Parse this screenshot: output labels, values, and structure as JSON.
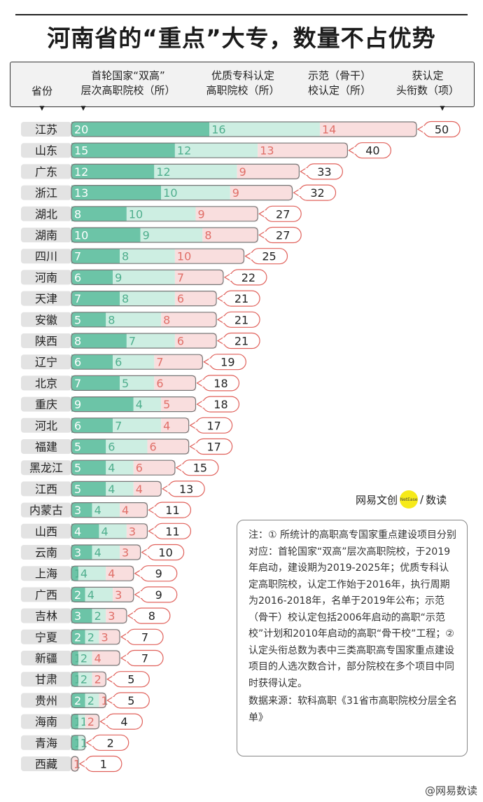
{
  "title": "河南省的“重点”大专，数量不占优势",
  "headers": {
    "province": "省份",
    "col1": "首轮国家“双高”\n层次高职院校（所）",
    "col2": "优质专科认定\n高职院校（所）",
    "col3": "示范（骨干）\n校认定（所）",
    "col4": "获认定\n头衔数（项）"
  },
  "colors": {
    "double_high": "#6cc4a7",
    "quality": "#cdeee2",
    "demo": "#f9dede",
    "bubble_border": "#e0605a",
    "demo_text": "#e06f68",
    "quality_text": "#4fae8d",
    "double_high_text": "#ffffff",
    "dark_text": "#222222"
  },
  "chart_data": {
    "type": "bar",
    "stacked": true,
    "categories": [
      "江苏",
      "山东",
      "广东",
      "浙江",
      "湖北",
      "湖南",
      "四川",
      "河南",
      "天津",
      "安徽",
      "陕西",
      "辽宁",
      "北京",
      "重庆",
      "河北",
      "福建",
      "黑龙江",
      "江西",
      "内蒙古",
      "山西",
      "云南",
      "上海",
      "广西",
      "吉林",
      "宁夏",
      "新疆",
      "甘肃",
      "贵州",
      "海南",
      "青海",
      "西藏"
    ],
    "series": [
      {
        "name": "首轮国家“双高”层次高职院校（所）",
        "values": [
          20,
          15,
          12,
          13,
          8,
          10,
          7,
          6,
          7,
          5,
          8,
          6,
          7,
          9,
          6,
          5,
          5,
          5,
          3,
          4,
          3,
          1,
          2,
          3,
          2,
          1,
          1,
          2,
          1,
          1,
          0
        ]
      },
      {
        "name": "优质专科认定高职院校（所）",
        "values": [
          16,
          12,
          12,
          10,
          10,
          9,
          8,
          9,
          8,
          8,
          7,
          6,
          5,
          4,
          7,
          6,
          4,
          4,
          4,
          4,
          4,
          4,
          4,
          2,
          2,
          2,
          2,
          2,
          1,
          1,
          0
        ]
      },
      {
        "name": "示范（骨干）校认定（所）",
        "values": [
          14,
          13,
          9,
          9,
          9,
          8,
          10,
          7,
          6,
          8,
          6,
          7,
          6,
          5,
          4,
          6,
          6,
          4,
          4,
          3,
          3,
          4,
          3,
          3,
          3,
          4,
          2,
          1,
          2,
          0,
          1
        ]
      }
    ],
    "totals": [
      50,
      40,
      33,
      32,
      27,
      27,
      25,
      22,
      21,
      21,
      21,
      19,
      18,
      18,
      17,
      17,
      15,
      13,
      11,
      11,
      10,
      9,
      9,
      8,
      7,
      7,
      5,
      5,
      4,
      2,
      1
    ]
  },
  "logo": {
    "brand": "网易文创",
    "dot_text": "NetEase",
    "slash": "/",
    "column": "数读"
  },
  "note": {
    "text": "注：① 所统计的高职高专国家重点建设项目分别对应：首轮国家“双高”层次高职院校，于2019年启动，建设期为2019-2025年；优质专科认定高职院校，认定工作始于2016年，执行周期为2016-2018年，名单于2019年公布；示范（骨干）校认定包括2006年启动的高职“示范校”计划和2010年启动的高职“骨干校”工程；② 认定头衔总数为表中三类高职高专国家重点建设项目的人选次数合计，部分院校在多个项目中同时获得认定。",
    "source": "数据来源：软科高职《31省市高职院校分层全名单》"
  },
  "watermark": "@网易数读"
}
